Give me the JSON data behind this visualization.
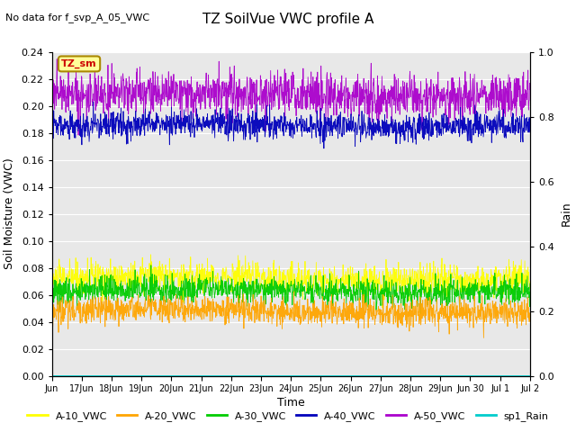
{
  "title": "TZ SoilVue VWC profile A",
  "subtitle": "No data for f_svp_A_05_VWC",
  "xlabel": "Time",
  "ylabel_left": "Soil Moisture (VWC)",
  "ylabel_right": "Rain",
  "ylim_left": [
    0.0,
    0.24
  ],
  "ylim_right": [
    0.0,
    1.0
  ],
  "yticks_left": [
    0.0,
    0.02,
    0.04,
    0.06,
    0.08,
    0.1,
    0.12,
    0.14,
    0.16,
    0.18,
    0.2,
    0.22,
    0.24
  ],
  "yticks_right": [
    0.0,
    0.2,
    0.4,
    0.6,
    0.8,
    1.0
  ],
  "bg_color": "#e8e8e8",
  "fig_color": "#ffffff",
  "legend_entries": [
    "A-10_VWC",
    "A-20_VWC",
    "A-30_VWC",
    "A-40_VWC",
    "A-50_VWC",
    "sp1_Rain"
  ],
  "legend_colors": [
    "#ffff00",
    "#ffa500",
    "#00cc00",
    "#0000bb",
    "#aa00cc",
    "#00cccc"
  ],
  "line_colors": {
    "A10": "#ffff00",
    "A20": "#ffa500",
    "A30": "#00cc00",
    "A40": "#0000bb",
    "A50": "#aa00cc",
    "rain": "#00cccc"
  },
  "inset_label": "TZ_sm",
  "inset_label_color": "#cc0000",
  "inset_bg": "#ffff99",
  "inset_border": "#aa8800",
  "n_points": 1500,
  "A10_mean": 0.072,
  "A10_std": 0.006,
  "A20_mean": 0.048,
  "A20_std": 0.005,
  "A30_mean": 0.063,
  "A30_std": 0.005,
  "A40_mean": 0.185,
  "A40_std": 0.005,
  "A50_mean": 0.208,
  "A50_std": 0.008,
  "rain_value": 0.0,
  "tick_labels": [
    "Jun",
    "17Jun",
    "18Jun",
    "19Jun",
    "20Jun",
    "21Jun",
    "22Jun",
    "23Jun",
    "24Jun",
    "25Jun",
    "26Jun",
    "27Jun",
    "28Jun",
    "29Jun",
    "Jun 30",
    "Jul 1",
    "Jul 2"
  ],
  "n_ticks": 17
}
